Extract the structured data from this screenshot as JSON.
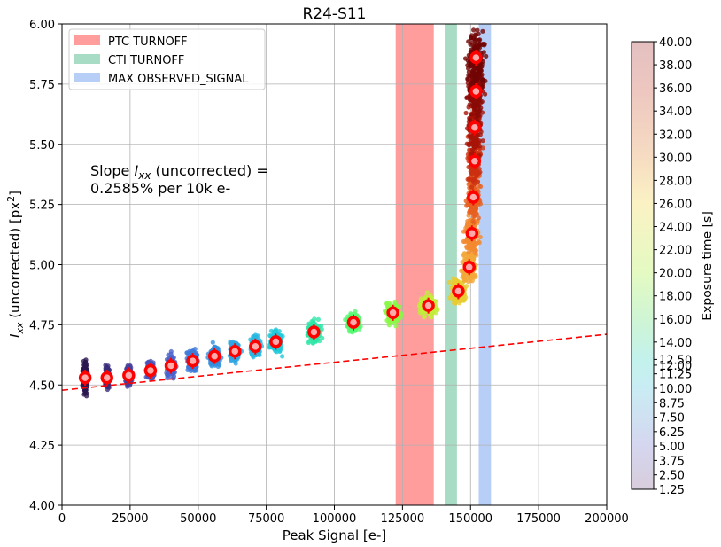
{
  "chart_data": {
    "type": "scatter",
    "title": "R24-S11",
    "xlabel": "Peak Signal [e-]",
    "ylabel_main": "I",
    "ylabel_sub": "xx",
    "ylabel_rest": " (uncorrected) [px",
    "ylabel_sup": "2",
    "ylabel_end": "]",
    "xlim": [
      0,
      200000
    ],
    "ylim": [
      4.0,
      6.0
    ],
    "grid": true,
    "x_ticks": [
      0,
      25000,
      50000,
      75000,
      100000,
      125000,
      150000,
      175000,
      200000
    ],
    "y_ticks": [
      4.0,
      4.25,
      4.5,
      4.75,
      5.0,
      5.25,
      5.5,
      5.75,
      6.0
    ],
    "x_tick_labels": [
      "0",
      "25000",
      "50000",
      "75000",
      "100000",
      "125000",
      "150000",
      "175000",
      "200000"
    ],
    "y_tick_labels": [
      "4.00",
      "4.25",
      "4.50",
      "4.75",
      "5.00",
      "5.25",
      "5.50",
      "5.75",
      "6.00"
    ],
    "annotation": {
      "line1_pre": "Slope ",
      "line1_var": "I",
      "line1_sub": "xx",
      "line1_post": " (uncorrected) =",
      "line2": "0.2585% per 10k e-"
    },
    "legend": {
      "placement": "top-left",
      "entries": [
        {
          "label": "PTC TURNOFF",
          "color": "#ff9d9d"
        },
        {
          "label": "CTI TURNOFF",
          "color": "#a9dcc4"
        },
        {
          "label": "MAX OBSERVED_SIGNAL",
          "color": "#b7cff7"
        }
      ]
    },
    "bands": [
      {
        "name": "PTC TURNOFF",
        "x0": 122500,
        "x1": 136500,
        "color": "#ff9d9d"
      },
      {
        "name": "CTI TURNOFF",
        "x0": 140500,
        "x1": 145000,
        "color": "#a9dcc4"
      },
      {
        "name": "MAX OBSERVED_SIGNAL",
        "x0": 153000,
        "x1": 157500,
        "color": "#b7cff7"
      }
    ],
    "fit_line": {
      "slope_per_10k": 0.01163,
      "intercept": 4.478,
      "color": "#ff0000",
      "style": "dashed"
    },
    "clusters": [
      {
        "x": 8500,
        "y": 4.53,
        "exposure": 1.25,
        "color": "#2a1850",
        "spread_x": 1500,
        "spread_y": 0.12
      },
      {
        "x": 16500,
        "y": 4.53,
        "exposure": 2.5,
        "color": "#3a2e7a",
        "spread_x": 1500,
        "spread_y": 0.08
      },
      {
        "x": 24500,
        "y": 4.54,
        "exposure": 3.75,
        "color": "#45409c",
        "spread_x": 2000,
        "spread_y": 0.08
      },
      {
        "x": 32500,
        "y": 4.56,
        "exposure": 5.0,
        "color": "#4a52b8",
        "spread_x": 2500,
        "spread_y": 0.08
      },
      {
        "x": 40000,
        "y": 4.58,
        "exposure": 6.25,
        "color": "#4a64cc",
        "spread_x": 3000,
        "spread_y": 0.08
      },
      {
        "x": 48000,
        "y": 4.6,
        "exposure": 7.5,
        "color": "#3f7ad8",
        "spread_x": 3500,
        "spread_y": 0.08
      },
      {
        "x": 56000,
        "y": 4.62,
        "exposure": 8.75,
        "color": "#3590de",
        "spread_x": 3500,
        "spread_y": 0.08
      },
      {
        "x": 63500,
        "y": 4.64,
        "exposure": 10.0,
        "color": "#2fa6e4",
        "spread_x": 3500,
        "spread_y": 0.08
      },
      {
        "x": 71000,
        "y": 4.66,
        "exposure": 11.25,
        "color": "#28b8e4",
        "spread_x": 3500,
        "spread_y": 0.08
      },
      {
        "x": 78500,
        "y": 4.68,
        "exposure": 12.5,
        "color": "#22cad8",
        "spread_x": 4000,
        "spread_y": 0.08
      },
      {
        "x": 92500,
        "y": 4.72,
        "exposure": 15.0,
        "color": "#30e6a8",
        "spread_x": 4000,
        "spread_y": 0.08
      },
      {
        "x": 107000,
        "y": 4.76,
        "exposure": 17.5,
        "color": "#56f870",
        "spread_x": 4500,
        "spread_y": 0.08
      },
      {
        "x": 121500,
        "y": 4.8,
        "exposure": 20.0,
        "color": "#8af848",
        "spread_x": 5000,
        "spread_y": 0.08
      },
      {
        "x": 134500,
        "y": 4.83,
        "exposure": 22.5,
        "color": "#c2ee38",
        "spread_x": 5500,
        "spread_y": 0.08
      },
      {
        "x": 145500,
        "y": 4.89,
        "exposure": 25.0,
        "color": "#e8cc30",
        "spread_x": 5000,
        "spread_y": 0.09
      },
      {
        "x": 149500,
        "y": 4.99,
        "exposure": 27.5,
        "color": "#f2a838",
        "spread_x": 4500,
        "spread_y": 0.12
      },
      {
        "x": 150500,
        "y": 5.13,
        "exposure": 30.0,
        "color": "#f28a30",
        "spread_x": 4500,
        "spread_y": 0.14
      },
      {
        "x": 151000,
        "y": 5.28,
        "exposure": 32.5,
        "color": "#e66020",
        "spread_x": 4500,
        "spread_y": 0.16
      },
      {
        "x": 151500,
        "y": 5.43,
        "exposure": 35.0,
        "color": "#cc3010",
        "spread_x": 4500,
        "spread_y": 0.18
      },
      {
        "x": 151500,
        "y": 5.57,
        "exposure": 37.5,
        "color": "#a81408",
        "spread_x": 5000,
        "spread_y": 0.2
      },
      {
        "x": 152000,
        "y": 5.72,
        "exposure": 38.75,
        "color": "#8a0a06",
        "spread_x": 5500,
        "spread_y": 0.22
      },
      {
        "x": 152000,
        "y": 5.86,
        "exposure": 40.0,
        "color": "#700404",
        "spread_x": 6000,
        "spread_y": 0.22
      }
    ],
    "medians": {
      "x": [
        8500,
        16500,
        24500,
        32500,
        40000,
        48000,
        56000,
        63500,
        71000,
        78500,
        92500,
        107000,
        121500,
        134500,
        145500,
        149500,
        150500,
        151000,
        151500,
        151500,
        152000,
        152000
      ],
      "y": [
        4.53,
        4.53,
        4.54,
        4.56,
        4.58,
        4.6,
        4.62,
        4.64,
        4.66,
        4.68,
        4.72,
        4.76,
        4.8,
        4.83,
        4.89,
        4.99,
        5.13,
        5.28,
        5.43,
        5.57,
        5.72,
        5.86
      ],
      "color": "#ff0000"
    },
    "colorbar": {
      "label": "Exposure time [s]",
      "range": [
        1.25,
        40.0
      ],
      "ticks": [
        1.25,
        2.5,
        3.75,
        5.0,
        6.25,
        7.5,
        8.75,
        10.0,
        11.25,
        12.0,
        12.5,
        14.0,
        16.0,
        18.0,
        20.0,
        22.0,
        24.0,
        26.0,
        28.0,
        30.0,
        32.0,
        34.0,
        36.0,
        38.0,
        40.0
      ],
      "tick_labels": [
        "1.25",
        "2.50",
        "3.75",
        "5.00",
        "6.25",
        "7.50",
        "8.75",
        "10.00",
        "11.25",
        "12.00",
        "12.50",
        "14.00",
        "16.00",
        "18.00",
        "20.00",
        "22.00",
        "24.00",
        "26.00",
        "28.00",
        "30.00",
        "32.00",
        "34.00",
        "36.00",
        "38.00",
        "40.00"
      ],
      "stops": [
        {
          "v": 1.25,
          "color": "#d8cddc"
        },
        {
          "v": 5.0,
          "color": "#d5d6ef"
        },
        {
          "v": 10.0,
          "color": "#c9ecf4"
        },
        {
          "v": 12.5,
          "color": "#c3f2ec"
        },
        {
          "v": 16.0,
          "color": "#cff5d4"
        },
        {
          "v": 20.0,
          "color": "#e4fac2"
        },
        {
          "v": 26.0,
          "color": "#fbf2c4"
        },
        {
          "v": 30.0,
          "color": "#f6dcc2"
        },
        {
          "v": 36.0,
          "color": "#edc6c0"
        },
        {
          "v": 40.0,
          "color": "#e3c0c0"
        }
      ]
    }
  }
}
